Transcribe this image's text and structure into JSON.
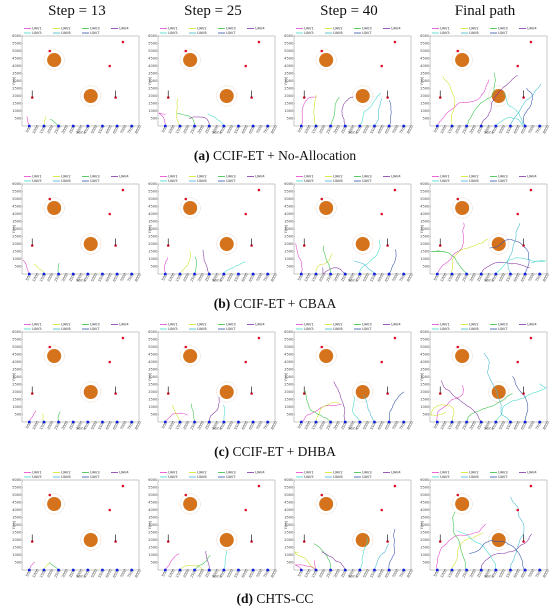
{
  "column_headers": [
    "Step = 13",
    "Step = 25",
    "Step = 40",
    "Final path"
  ],
  "captions": [
    {
      "label": "(a)",
      "text": "CCIF-ET + No-Allocation"
    },
    {
      "label": "(b)",
      "text": "CCIF-ET + CBAA"
    },
    {
      "label": "(c)",
      "text": "CCIF-ET + DHBA"
    },
    {
      "label": "(d)",
      "text": "CHTS-CC"
    }
  ],
  "colors": {
    "UAV1": "#e040c8",
    "UAV2": "#d0e020",
    "UAV3": "#30c040",
    "UAV4": "#8030a0",
    "UAV5": "#40d8c8",
    "UAV6": "#40b8d0",
    "UAV7": "#3050a8",
    "obstacle": "#d4731c",
    "target": "#e0102a",
    "start": "#1020e0"
  },
  "chart_data": [
    {
      "type": "line",
      "xlabel": "X(m)",
      "ylabel": "Y(m)",
      "xlim": [
        0,
        8000
      ],
      "ylim": [
        0,
        6000
      ],
      "x_ticks": [
        500,
        1000,
        1500,
        2000,
        2500,
        3000,
        3500,
        4000,
        4500,
        5000,
        5500,
        6000,
        6500,
        7000,
        7500,
        8000
      ],
      "y_ticks": [
        500,
        1000,
        1500,
        2000,
        2500,
        3000,
        3500,
        4000,
        4500,
        5000,
        5500,
        6000
      ],
      "legend": [
        "UAV1",
        "UAV2",
        "UAV3",
        "UAV4",
        "UAV5",
        "UAV6",
        "UAV7"
      ],
      "obstacles": [
        {
          "x": 2200,
          "y": 4400,
          "r": 480
        },
        {
          "x": 4700,
          "y": 2000,
          "r": 480
        }
      ],
      "start_x": [
        500,
        1500,
        2500,
        3500,
        4500,
        5500,
        6500,
        7500
      ],
      "targets": [
        {
          "x": 1900,
          "y": 5000
        },
        {
          "x": 6000,
          "y": 4000
        },
        {
          "x": 6900,
          "y": 5600
        },
        {
          "x": 700,
          "y": 1900
        },
        {
          "x": 6400,
          "y": 1900
        }
      ],
      "series": []
    }
  ]
}
